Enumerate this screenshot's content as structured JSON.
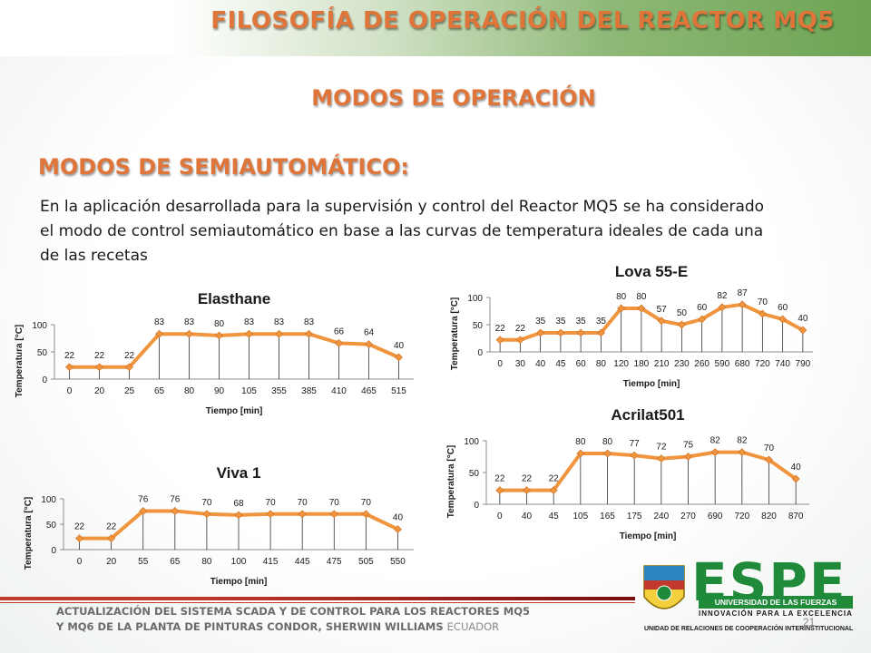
{
  "header": {
    "title": "FILOSOFÍA DE OPERACIÓN DEL REACTOR MQ5",
    "subtitle": "MODOS DE OPERACIÓN",
    "section_heading": "MODOS DE SEMIAUTOMÁTICO:"
  },
  "body": {
    "paragraph": "En la aplicación desarrollada para la supervisión y control del Reactor MQ5 se ha considerado el modo de control semiautomático en base a las curvas de temperatura ideales de cada una de las recetas"
  },
  "footer": {
    "line1": "ACTUALIZACIÓN DEL SISTEMA SCADA Y DE CONTROL PARA LOS REACTORES MQ5",
    "line2_bold": "Y MQ6 DE LA PLANTA DE PINTURAS CONDOR, SHERWIN WILLIAMS",
    "line2_light": "ECUADOR",
    "page_number": "21"
  },
  "logo": {
    "word": "ESPE",
    "university": "UNIVERSIDAD DE LAS FUERZAS ARMADAS",
    "tagline": "INNOVACIÓN PARA LA EXCELENCIA",
    "unit": "UNIDAD DE RELACIONES DE COOPERACIÓN INTERINSTITUCIONAL",
    "crest_label": "ESPE ECUADOR"
  },
  "colors": {
    "accent": "#e0753a",
    "line": "#f0953e",
    "brand_green": "#1f8a3a"
  },
  "chart_data": [
    {
      "type": "line",
      "title": "Elasthane",
      "xlabel": "Tiempo [min]",
      "ylabel": "Temperatura [°C]",
      "categories": [
        "0",
        "20",
        "25",
        "65",
        "80",
        "90",
        "105",
        "355",
        "385",
        "410",
        "465",
        "515"
      ],
      "values": [
        22,
        22,
        22,
        83,
        83,
        80,
        83,
        83,
        83,
        66,
        64,
        40
      ],
      "yticks": [
        0,
        50,
        100
      ],
      "ylim": [
        0,
        100
      ],
      "grid": false
    },
    {
      "type": "line",
      "title": "Lova 55-E",
      "xlabel": "Tiempo [min]",
      "ylabel": "Temperatura [°C]",
      "categories": [
        "0",
        "30",
        "40",
        "45",
        "60",
        "80",
        "120",
        "180",
        "210",
        "230",
        "260",
        "590",
        "680",
        "720",
        "740",
        "790"
      ],
      "values": [
        22,
        22,
        35,
        35,
        35,
        35,
        80,
        80,
        57,
        50,
        60,
        82,
        87,
        70,
        60,
        40
      ],
      "yticks": [
        0,
        50,
        100
      ],
      "ylim": [
        0,
        100
      ],
      "grid": false
    },
    {
      "type": "line",
      "title": "Acrilat501",
      "xlabel": "Tiempo [min]",
      "ylabel": "Temperatura [°C]",
      "categories": [
        "0",
        "40",
        "45",
        "105",
        "165",
        "175",
        "240",
        "270",
        "690",
        "720",
        "820",
        "870"
      ],
      "values": [
        22,
        22,
        22,
        80,
        80,
        77,
        72,
        75,
        82,
        82,
        70,
        40
      ],
      "yticks": [
        0,
        50,
        100
      ],
      "ylim": [
        0,
        100
      ],
      "grid": false
    },
    {
      "type": "line",
      "title": "Viva 1",
      "xlabel": "Tiempo [min]",
      "ylabel": "Temperatura [°C]",
      "categories": [
        "0",
        "20",
        "55",
        "65",
        "80",
        "100",
        "415",
        "445",
        "475",
        "505",
        "550"
      ],
      "values": [
        22,
        22,
        76,
        76,
        70,
        68,
        70,
        70,
        70,
        70,
        40
      ],
      "yticks": [
        0,
        50,
        100
      ],
      "ylim": [
        0,
        100
      ],
      "grid": false
    }
  ]
}
